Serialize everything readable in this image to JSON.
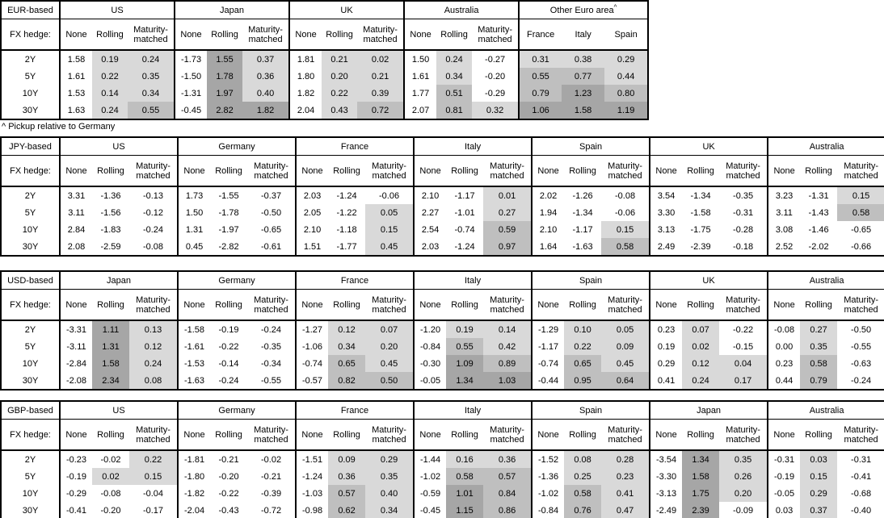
{
  "footnote": "^ Pickup relative to Germany",
  "hedge_row_label": "FX hedge:",
  "row_labels": [
    "2Y",
    "5Y",
    "10Y",
    "30Y"
  ],
  "hedge_options": [
    "None",
    "Rolling",
    "Maturity-matched"
  ],
  "shading": {
    "applies_to": "Rolling and Maturity-matched columns, and all Other Euro area columns",
    "rule": "no fill if value < 0; band1 if 0 <= v < 0.5; band2 if 0.5 <= v < 1.0; band3 if v >= 1.0",
    "thresholds": [
      0,
      0.5,
      1.0
    ],
    "band_colors": [
      "#d9d9d9",
      "#bfbfbf",
      "#a6a6a6"
    ],
    "border_color": "#000000",
    "text_color": "#000000",
    "background_color": "#ffffff"
  },
  "tables": [
    {
      "base": "EUR-based",
      "footnote_after": true,
      "groups": [
        {
          "name": "US",
          "rows": [
            [
              "1.58",
              "0.19",
              "0.24"
            ],
            [
              "1.61",
              "0.22",
              "0.35"
            ],
            [
              "1.53",
              "0.14",
              "0.34"
            ],
            [
              "1.63",
              "0.24",
              "0.55"
            ]
          ]
        },
        {
          "name": "Japan",
          "rows": [
            [
              "-1.73",
              "1.55",
              "0.37"
            ],
            [
              "-1.50",
              "1.78",
              "0.36"
            ],
            [
              "-1.31",
              "1.97",
              "0.40"
            ],
            [
              "-0.45",
              "2.82",
              "1.82"
            ]
          ]
        },
        {
          "name": "UK",
          "rows": [
            [
              "1.81",
              "0.21",
              "0.02"
            ],
            [
              "1.80",
              "0.20",
              "0.21"
            ],
            [
              "1.82",
              "0.22",
              "0.39"
            ],
            [
              "2.04",
              "0.43",
              "0.72"
            ]
          ]
        },
        {
          "name": "Australia",
          "rows": [
            [
              "1.50",
              "0.24",
              "-0.27"
            ],
            [
              "1.61",
              "0.34",
              "-0.20"
            ],
            [
              "1.77",
              "0.51",
              "-0.29"
            ],
            [
              "2.07",
              "0.81",
              "0.32"
            ]
          ]
        },
        {
          "name": "Other Euro area",
          "sup": "^",
          "shade_all": true,
          "cols": [
            "France",
            "Italy",
            "Spain"
          ],
          "rows": [
            [
              "0.31",
              "0.38",
              "0.29"
            ],
            [
              "0.55",
              "0.77",
              "0.44"
            ],
            [
              "0.79",
              "1.23",
              "0.80"
            ],
            [
              "1.06",
              "1.58",
              "1.19"
            ]
          ]
        }
      ]
    },
    {
      "base": "JPY-based",
      "groups": [
        {
          "name": "US",
          "rows": [
            [
              "3.31",
              "-1.36",
              "-0.13"
            ],
            [
              "3.11",
              "-1.56",
              "-0.12"
            ],
            [
              "2.84",
              "-1.83",
              "-0.24"
            ],
            [
              "2.08",
              "-2.59",
              "-0.08"
            ]
          ]
        },
        {
          "name": "Germany",
          "rows": [
            [
              "1.73",
              "-1.55",
              "-0.37"
            ],
            [
              "1.50",
              "-1.78",
              "-0.50"
            ],
            [
              "1.31",
              "-1.97",
              "-0.65"
            ],
            [
              "0.45",
              "-2.82",
              "-0.61"
            ]
          ]
        },
        {
          "name": "France",
          "rows": [
            [
              "2.03",
              "-1.24",
              "-0.06"
            ],
            [
              "2.05",
              "-1.22",
              "0.05"
            ],
            [
              "2.10",
              "-1.18",
              "0.15"
            ],
            [
              "1.51",
              "-1.77",
              "0.45"
            ]
          ]
        },
        {
          "name": "Italy",
          "rows": [
            [
              "2.10",
              "-1.17",
              "0.01"
            ],
            [
              "2.27",
              "-1.01",
              "0.27"
            ],
            [
              "2.54",
              "-0.74",
              "0.59"
            ],
            [
              "2.03",
              "-1.24",
              "0.97"
            ]
          ]
        },
        {
          "name": "Spain",
          "rows": [
            [
              "2.02",
              "-1.26",
              "-0.08"
            ],
            [
              "1.94",
              "-1.34",
              "-0.06"
            ],
            [
              "2.10",
              "-1.17",
              "0.15"
            ],
            [
              "1.64",
              "-1.63",
              "0.58"
            ]
          ]
        },
        {
          "name": "UK",
          "rows": [
            [
              "3.54",
              "-1.34",
              "-0.35"
            ],
            [
              "3.30",
              "-1.58",
              "-0.31"
            ],
            [
              "3.13",
              "-1.75",
              "-0.28"
            ],
            [
              "2.49",
              "-2.39",
              "-0.18"
            ]
          ]
        },
        {
          "name": "Australia",
          "rows": [
            [
              "3.23",
              "-1.31",
              "0.15"
            ],
            [
              "3.11",
              "-1.43",
              "0.58"
            ],
            [
              "3.08",
              "-1.46",
              "-0.65"
            ],
            [
              "2.52",
              "-2.02",
              "-0.66"
            ]
          ]
        }
      ]
    },
    {
      "base": "USD-based",
      "groups": [
        {
          "name": "Japan",
          "rows": [
            [
              "-3.31",
              "1.11",
              "0.13"
            ],
            [
              "-3.11",
              "1.31",
              "0.12"
            ],
            [
              "-2.84",
              "1.58",
              "0.24"
            ],
            [
              "-2.08",
              "2.34",
              "0.08"
            ]
          ]
        },
        {
          "name": "Germany",
          "rows": [
            [
              "-1.58",
              "-0.19",
              "-0.24"
            ],
            [
              "-1.61",
              "-0.22",
              "-0.35"
            ],
            [
              "-1.53",
              "-0.14",
              "-0.34"
            ],
            [
              "-1.63",
              "-0.24",
              "-0.55"
            ]
          ]
        },
        {
          "name": "France",
          "rows": [
            [
              "-1.27",
              "0.12",
              "0.07"
            ],
            [
              "-1.06",
              "0.34",
              "0.20"
            ],
            [
              "-0.74",
              "0.65",
              "0.45"
            ],
            [
              "-0.57",
              "0.82",
              "0.50"
            ]
          ]
        },
        {
          "name": "Italy",
          "rows": [
            [
              "-1.20",
              "0.19",
              "0.14"
            ],
            [
              "-0.84",
              "0.55",
              "0.42"
            ],
            [
              "-0.30",
              "1.09",
              "0.89"
            ],
            [
              "-0.05",
              "1.34",
              "1.03"
            ]
          ]
        },
        {
          "name": "Spain",
          "rows": [
            [
              "-1.29",
              "0.10",
              "0.05"
            ],
            [
              "-1.17",
              "0.22",
              "0.09"
            ],
            [
              "-0.74",
              "0.65",
              "0.45"
            ],
            [
              "-0.44",
              "0.95",
              "0.64"
            ]
          ]
        },
        {
          "name": "UK",
          "rows": [
            [
              "0.23",
              "0.07",
              "-0.22"
            ],
            [
              "0.19",
              "0.02",
              "-0.15"
            ],
            [
              "0.29",
              "0.12",
              "0.04"
            ],
            [
              "0.41",
              "0.24",
              "0.17"
            ]
          ]
        },
        {
          "name": "Australia",
          "rows": [
            [
              "-0.08",
              "0.27",
              "-0.50"
            ],
            [
              "0.00",
              "0.35",
              "-0.55"
            ],
            [
              "0.23",
              "0.58",
              "-0.63"
            ],
            [
              "0.44",
              "0.79",
              "-0.24"
            ]
          ]
        }
      ]
    },
    {
      "base": "GBP-based",
      "groups": [
        {
          "name": "US",
          "rows": [
            [
              "-0.23",
              "-0.02",
              "0.22"
            ],
            [
              "-0.19",
              "0.02",
              "0.15"
            ],
            [
              "-0.29",
              "-0.08",
              "-0.04"
            ],
            [
              "-0.41",
              "-0.20",
              "-0.17"
            ]
          ]
        },
        {
          "name": "Germany",
          "rows": [
            [
              "-1.81",
              "-0.21",
              "-0.02"
            ],
            [
              "-1.80",
              "-0.20",
              "-0.21"
            ],
            [
              "-1.82",
              "-0.22",
              "-0.39"
            ],
            [
              "-2.04",
              "-0.43",
              "-0.72"
            ]
          ]
        },
        {
          "name": "France",
          "rows": [
            [
              "-1.51",
              "0.09",
              "0.29"
            ],
            [
              "-1.24",
              "0.36",
              "0.35"
            ],
            [
              "-1.03",
              "0.57",
              "0.40"
            ],
            [
              "-0.98",
              "0.62",
              "0.34"
            ]
          ]
        },
        {
          "name": "Italy",
          "rows": [
            [
              "-1.44",
              "0.16",
              "0.36"
            ],
            [
              "-1.02",
              "0.58",
              "0.57"
            ],
            [
              "-0.59",
              "1.01",
              "0.84"
            ],
            [
              "-0.45",
              "1.15",
              "0.86"
            ]
          ]
        },
        {
          "name": "Spain",
          "rows": [
            [
              "-1.52",
              "0.08",
              "0.28"
            ],
            [
              "-1.36",
              "0.25",
              "0.23"
            ],
            [
              "-1.02",
              "0.58",
              "0.41"
            ],
            [
              "-0.84",
              "0.76",
              "0.47"
            ]
          ]
        },
        {
          "name": "Japan",
          "rows": [
            [
              "-3.54",
              "1.34",
              "0.35"
            ],
            [
              "-3.30",
              "1.58",
              "0.26"
            ],
            [
              "-3.13",
              "1.75",
              "0.20"
            ],
            [
              "-2.49",
              "2.39",
              "-0.09"
            ]
          ]
        },
        {
          "name": "Australia",
          "rows": [
            [
              "-0.31",
              "0.03",
              "-0.31"
            ],
            [
              "-0.19",
              "0.15",
              "-0.41"
            ],
            [
              "-0.05",
              "0.29",
              "-0.68"
            ],
            [
              "0.03",
              "0.37",
              "-0.40"
            ]
          ]
        }
      ]
    }
  ]
}
